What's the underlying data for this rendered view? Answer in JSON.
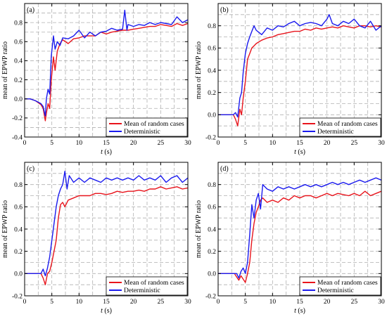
{
  "chart_data": [
    {
      "type": "line",
      "panel_label": "(a)",
      "xlabel_italic": "t",
      "xlabel_unit": " (s)",
      "ylabel": "mean of EPWP ratio",
      "xlim": [
        0,
        30
      ],
      "ylim": [
        -0.4,
        1.0
      ],
      "xticks": [
        "0",
        "5",
        "10",
        "15",
        "20",
        "25",
        "30"
      ],
      "yticks": [
        "-0.4",
        "-0.2",
        "0.0",
        "0.2",
        "0.4",
        "0.6",
        "0.8"
      ],
      "legend": "bottom-right",
      "series": [
        {
          "name": "Mean of random cases",
          "color": "#e8141c",
          "x": [
            0,
            1,
            2,
            3,
            3.4,
            3.8,
            4.0,
            4.3,
            4.6,
            4.9,
            5.3,
            5.6,
            6.0,
            6.5,
            7,
            8,
            9,
            10,
            11,
            12,
            13,
            14,
            15,
            16,
            17,
            18,
            19,
            20,
            21,
            22,
            23,
            24,
            25,
            26,
            27,
            28,
            29,
            30
          ],
          "y": [
            0,
            0,
            -0.02,
            -0.06,
            -0.1,
            -0.23,
            -0.15,
            -0.05,
            -0.1,
            0.2,
            0.44,
            0.3,
            0.5,
            0.58,
            0.62,
            0.58,
            0.63,
            0.64,
            0.66,
            0.66,
            0.66,
            0.7,
            0.68,
            0.7,
            0.71,
            0.72,
            0.72,
            0.73,
            0.74,
            0.75,
            0.76,
            0.76,
            0.78,
            0.77,
            0.76,
            0.79,
            0.77,
            0.79
          ]
        },
        {
          "name": "Deterministic",
          "color": "#1a1aee",
          "x": [
            0,
            1,
            2,
            3,
            3.4,
            3.8,
            4.0,
            4.3,
            4.6,
            4.9,
            5.3,
            5.6,
            6.0,
            6.5,
            7,
            8,
            9,
            10,
            11,
            12,
            13,
            14,
            15,
            16,
            17,
            18,
            18.4,
            18.8,
            19,
            20,
            21,
            22,
            23,
            24,
            25,
            26,
            27,
            28,
            29,
            30
          ],
          "y": [
            0,
            0,
            -0.02,
            -0.05,
            -0.08,
            -0.18,
            0.0,
            0.1,
            0.05,
            0.45,
            0.66,
            0.52,
            0.6,
            0.56,
            0.64,
            0.63,
            0.66,
            0.72,
            0.64,
            0.7,
            0.66,
            0.7,
            0.71,
            0.74,
            0.72,
            0.73,
            0.93,
            0.72,
            0.78,
            0.76,
            0.78,
            0.77,
            0.8,
            0.78,
            0.8,
            0.79,
            0.78,
            0.86,
            0.8,
            0.83
          ]
        }
      ]
    },
    {
      "type": "line",
      "panel_label": "(b)",
      "xlabel_italic": "t",
      "xlabel_unit": " (s)",
      "ylabel": "mean of EPWP ratio",
      "xlim": [
        0,
        30
      ],
      "ylim": [
        -0.2,
        1.0
      ],
      "xticks": [
        "0",
        "5",
        "10",
        "15",
        "20",
        "25",
        "30"
      ],
      "yticks": [
        "-0.2",
        "0.0",
        "0.2",
        "0.4",
        "0.6",
        "0.8"
      ],
      "legend": "bottom-right",
      "series": [
        {
          "name": "Mean of random cases",
          "color": "#e8141c",
          "x": [
            0,
            1,
            2,
            2.8,
            3.2,
            3.6,
            4.0,
            4.3,
            4.6,
            5.0,
            5.4,
            5.8,
            6.2,
            6.6,
            7,
            8,
            9,
            10,
            11,
            12,
            13,
            14,
            15,
            16,
            17,
            18,
            19,
            20,
            21,
            22,
            23,
            24,
            25,
            26,
            27,
            28,
            29,
            30
          ],
          "y": [
            0,
            0,
            0,
            0,
            -0.04,
            -0.1,
            0.05,
            0.0,
            0.15,
            0.3,
            0.5,
            0.55,
            0.6,
            0.62,
            0.64,
            0.67,
            0.69,
            0.7,
            0.72,
            0.73,
            0.74,
            0.75,
            0.75,
            0.77,
            0.76,
            0.78,
            0.77,
            0.78,
            0.79,
            0.78,
            0.8,
            0.79,
            0.78,
            0.8,
            0.8,
            0.79,
            0.8,
            0.79
          ]
        },
        {
          "name": "Deterministic",
          "color": "#1a1aee",
          "x": [
            0,
            1,
            2,
            2.8,
            3.2,
            3.6,
            4.0,
            4.3,
            4.6,
            5.0,
            5.4,
            5.8,
            6.2,
            6.6,
            7,
            8,
            9,
            10,
            11,
            12,
            13,
            14,
            15,
            16,
            17,
            18,
            19,
            20,
            20.4,
            21,
            22,
            23,
            24,
            25,
            26,
            27,
            28,
            29,
            30
          ],
          "y": [
            0,
            0,
            0,
            0,
            0.02,
            -0.02,
            0.15,
            0.2,
            0.38,
            0.55,
            0.64,
            0.7,
            0.75,
            0.8,
            0.76,
            0.72,
            0.78,
            0.76,
            0.8,
            0.79,
            0.82,
            0.84,
            0.8,
            0.82,
            0.83,
            0.82,
            0.8,
            0.86,
            0.9,
            0.82,
            0.8,
            0.84,
            0.82,
            0.86,
            0.8,
            0.78,
            0.84,
            0.76,
            0.8
          ]
        }
      ]
    },
    {
      "type": "line",
      "panel_label": "(c)",
      "xlabel_italic": "t",
      "xlabel_unit": " (s)",
      "ylabel": "mean of EPWP ratio",
      "xlim": [
        0,
        30
      ],
      "ylim": [
        -0.2,
        1.0
      ],
      "xticks": [
        "0",
        "5",
        "10",
        "15",
        "20",
        "25",
        "30"
      ],
      "yticks": [
        "-0.2",
        "0.0",
        "0.2",
        "0.4",
        "0.6",
        "0.8"
      ],
      "legend": "bottom-right",
      "series": [
        {
          "name": "Mean of random cases",
          "color": "#e8141c",
          "x": [
            0,
            1,
            2,
            3,
            3.4,
            3.8,
            4.2,
            4.6,
            5.0,
            5.4,
            5.8,
            6.2,
            6.6,
            7.0,
            7.4,
            8,
            9,
            10,
            11,
            12,
            13,
            14,
            15,
            16,
            17,
            18,
            19,
            20,
            21,
            22,
            23,
            24,
            25,
            26,
            27,
            28,
            29,
            30
          ],
          "y": [
            0,
            0,
            0,
            0,
            -0.04,
            -0.1,
            0.0,
            0.02,
            0.1,
            0.2,
            0.3,
            0.5,
            0.62,
            0.64,
            0.6,
            0.66,
            0.68,
            0.7,
            0.7,
            0.7,
            0.72,
            0.72,
            0.71,
            0.72,
            0.74,
            0.73,
            0.74,
            0.74,
            0.75,
            0.74,
            0.76,
            0.76,
            0.78,
            0.76,
            0.77,
            0.78,
            0.76,
            0.77
          ]
        },
        {
          "name": "Deterministic",
          "color": "#1a1aee",
          "x": [
            0,
            1,
            2,
            3,
            3.4,
            3.8,
            4.2,
            4.6,
            5.0,
            5.4,
            5.8,
            6.2,
            6.6,
            7.0,
            7.4,
            7.8,
            8.2,
            9,
            10,
            11,
            12,
            13,
            14,
            15,
            16,
            17,
            18,
            19,
            20,
            21,
            22,
            23,
            24,
            25,
            26,
            27,
            28,
            29,
            30
          ],
          "y": [
            0,
            0,
            0,
            0,
            0.04,
            -0.02,
            0.05,
            0.15,
            0.3,
            0.45,
            0.6,
            0.7,
            0.76,
            0.8,
            0.92,
            0.76,
            0.88,
            0.82,
            0.86,
            0.82,
            0.86,
            0.84,
            0.82,
            0.86,
            0.84,
            0.86,
            0.84,
            0.86,
            0.84,
            0.88,
            0.84,
            0.86,
            0.84,
            0.88,
            0.82,
            0.86,
            0.88,
            0.82,
            0.86
          ]
        }
      ]
    },
    {
      "type": "line",
      "panel_label": "(d)",
      "xlabel_italic": "t",
      "xlabel_unit": " (s)",
      "ylabel": "mean of EPWP ratio",
      "xlim": [
        0,
        30
      ],
      "ylim": [
        -0.2,
        1.0
      ],
      "xticks": [
        "0",
        "5",
        "10",
        "15",
        "20",
        "25",
        "30"
      ],
      "yticks": [
        "-0.2",
        "0.0",
        "0.2",
        "0.4",
        "0.6",
        "0.8"
      ],
      "legend": "bottom-right",
      "series": [
        {
          "name": "Mean of random cases",
          "color": "#e8141c",
          "x": [
            0,
            1,
            2,
            3,
            3.4,
            3.8,
            4.2,
            4.6,
            5.0,
            5.4,
            5.8,
            6.2,
            6.6,
            7.0,
            7.4,
            7.8,
            8.2,
            9,
            10,
            11,
            12,
            13,
            14,
            15,
            16,
            17,
            18,
            19,
            20,
            21,
            22,
            23,
            24,
            25,
            26,
            27,
            28,
            29,
            30
          ],
          "y": [
            0,
            0,
            0,
            0,
            -0.03,
            -0.06,
            -0.02,
            -0.05,
            -0.08,
            0.0,
            0.1,
            0.3,
            0.45,
            0.55,
            0.6,
            0.66,
            0.68,
            0.64,
            0.66,
            0.64,
            0.68,
            0.66,
            0.7,
            0.68,
            0.7,
            0.7,
            0.68,
            0.7,
            0.72,
            0.7,
            0.72,
            0.71,
            0.7,
            0.72,
            0.7,
            0.74,
            0.7,
            0.72,
            0.74
          ]
        },
        {
          "name": "Deterministic",
          "color": "#1a1aee",
          "x": [
            0,
            1,
            2,
            3,
            3.4,
            3.8,
            4.2,
            4.6,
            5.0,
            5.4,
            5.8,
            6.2,
            6.6,
            7.0,
            7.4,
            7.8,
            8.2,
            9,
            10,
            11,
            12,
            13,
            14,
            15,
            16,
            17,
            18,
            19,
            20,
            21,
            22,
            23,
            24,
            25,
            26,
            27,
            28,
            29,
            30
          ],
          "y": [
            0,
            0,
            0,
            0,
            0.0,
            -0.04,
            0.02,
            0.05,
            0.0,
            0.1,
            0.35,
            0.62,
            0.5,
            0.66,
            0.72,
            0.58,
            0.8,
            0.76,
            0.74,
            0.78,
            0.76,
            0.78,
            0.76,
            0.78,
            0.8,
            0.78,
            0.8,
            0.78,
            0.8,
            0.82,
            0.8,
            0.82,
            0.8,
            0.82,
            0.84,
            0.82,
            0.84,
            0.86,
            0.84
          ]
        }
      ]
    }
  ]
}
